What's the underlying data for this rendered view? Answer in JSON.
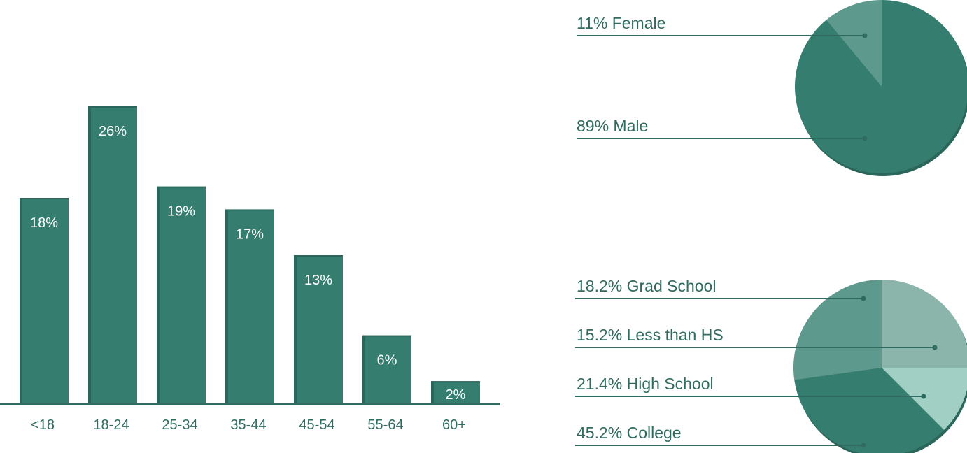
{
  "chart_data": [
    {
      "type": "bar",
      "categories": [
        "<18",
        "18-24",
        "25-34",
        "35-44",
        "45-54",
        "55-64",
        "60+"
      ],
      "values": [
        18,
        26,
        19,
        17,
        13,
        6,
        2
      ],
      "data_labels": [
        "18%",
        "26%",
        "19%",
        "17%",
        "13%",
        "6%",
        "2%"
      ],
      "ylim": [
        0,
        26
      ],
      "grid": false,
      "colors": {
        "bar": "#357d6f",
        "bar_shade": "#2a6659",
        "axis": "#2f6b5f"
      }
    },
    {
      "type": "pie",
      "slices": [
        {
          "label": "11% Female",
          "value": 11,
          "color": "#5e998d"
        },
        {
          "label": "89% Male",
          "value": 89,
          "color": "#357d6f"
        }
      ]
    },
    {
      "type": "pie",
      "slices": [
        {
          "label": "18.2% Grad School",
          "value": 18.2,
          "color": "#5e998d"
        },
        {
          "label": "15.2% Less than HS",
          "value": 15.2,
          "color": "#a1cfc4"
        },
        {
          "label": "21.4% High School",
          "value": 21.4,
          "color": "#357d6f"
        },
        {
          "label": "45.2% College",
          "value": 45.2,
          "color": "#357d6f"
        }
      ],
      "extra_slice_color": "#8bb5aa"
    }
  ]
}
